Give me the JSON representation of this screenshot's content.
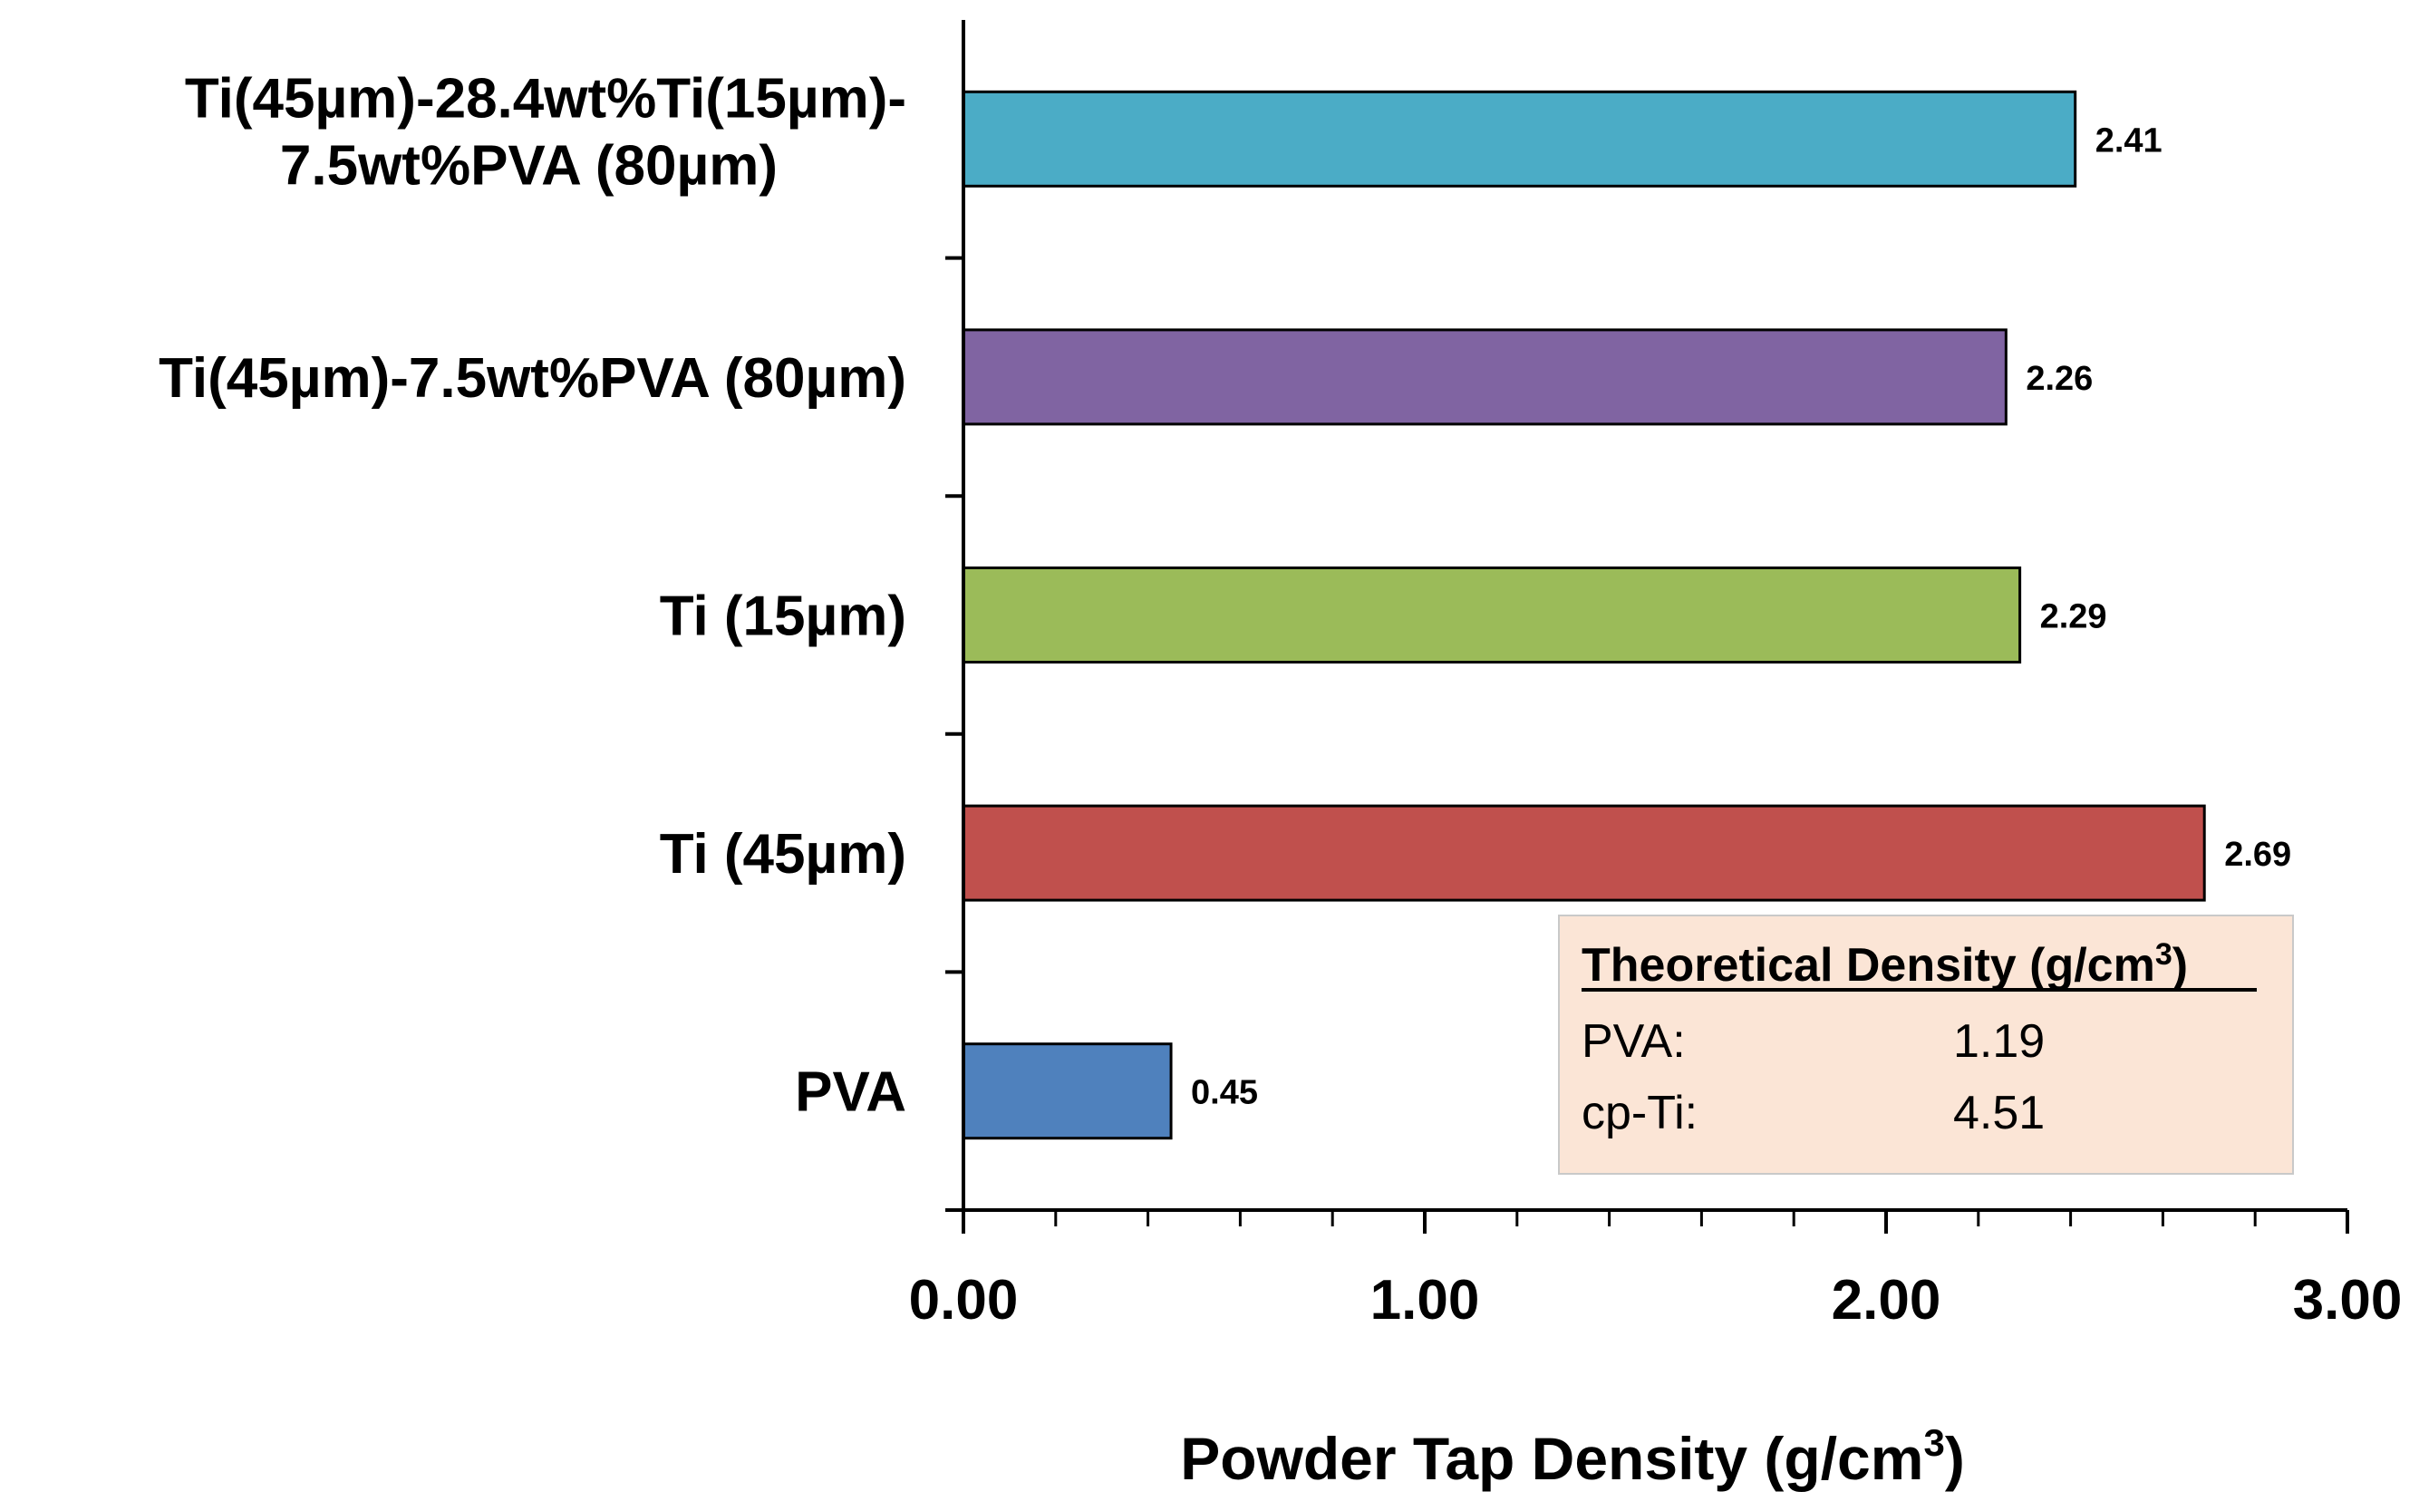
{
  "chart_data": {
    "type": "bar",
    "orientation": "horizontal",
    "categories": [
      {
        "line1": "Ti(45µm)-28.4wt%Ti(15µm)-",
        "line2": "7.5wt%PVA (80µm)"
      },
      {
        "line1": "Ti(45µm)-7.5wt%PVA (80µm)"
      },
      {
        "line1": "Ti (15µm)"
      },
      {
        "line1": "Ti (45µm)"
      },
      {
        "line1": "PVA"
      }
    ],
    "values": [
      2.41,
      2.26,
      2.29,
      2.69,
      0.45
    ],
    "value_labels": [
      "2.41",
      "2.26",
      "2.29",
      "2.69",
      "0.45"
    ],
    "colors": [
      "#4bacc6",
      "#8064a2",
      "#9bbb59",
      "#c0504d",
      "#4f81bd"
    ],
    "xlim": [
      0,
      3
    ],
    "xticks": [
      0,
      1,
      2,
      3
    ],
    "xtick_labels": [
      "0.00",
      "1.00",
      "2.00",
      "3.00"
    ],
    "minor_ticks_per_major": 5,
    "xlabel": "Powder Tap Density (g/cm",
    "xlabel_sup": "3",
    "xlabel_end": ")",
    "grid": false,
    "legend": "none"
  },
  "info_box": {
    "title": "Theoretical Density (g/cm",
    "title_sup": "3",
    "title_end": ")",
    "rows": [
      {
        "label": "PVA:",
        "value": "1.19"
      },
      {
        "label": "cp-Ti:",
        "value": "4.51"
      }
    ],
    "background": "#fbe5d6",
    "border": "#c9c9c9"
  }
}
